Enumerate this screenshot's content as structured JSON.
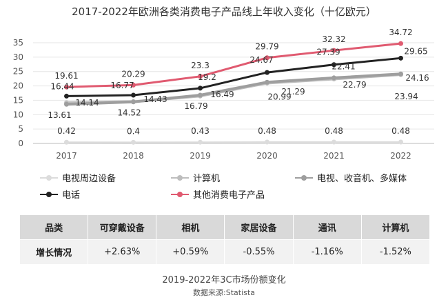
{
  "chart_data": {
    "type": "line",
    "title": "2017-2022年欧洲各类消费电子产品线上年收入变化（十亿欧元）",
    "xlabel": "",
    "ylabel": "",
    "x": [
      "2017",
      "2018",
      "2019",
      "2020",
      "2021",
      "2022"
    ],
    "ylim": [
      0,
      35
    ],
    "yticks": [
      "0",
      "5",
      "10",
      "15",
      "20",
      "25",
      "30",
      "35"
    ],
    "grid": true,
    "legend_position": "bottom",
    "series": [
      {
        "name": "电视周边设备",
        "values": [
          0.42,
          0.4,
          0.43,
          0.48,
          0.48,
          0.48
        ],
        "color": "#dcdcdc"
      },
      {
        "name": "计算机",
        "values": [
          14.14,
          14.52,
          16.49,
          20.99,
          22.41,
          23.94
        ],
        "color": "#bdbdbd"
      },
      {
        "name": "电视、收音机、多媒体",
        "values": [
          13.61,
          14.43,
          16.79,
          21.29,
          22.79,
          24.16
        ],
        "color": "#9e9e9e"
      },
      {
        "name": "电话",
        "values": [
          16.44,
          16.77,
          19.2,
          24.67,
          27.39,
          29.65
        ],
        "color": "#222222"
      },
      {
        "name": "其他消费电子产品",
        "values": [
          19.61,
          20.29,
          23.3,
          29.79,
          32.32,
          34.72
        ],
        "color": "#e05a70"
      }
    ]
  },
  "table": {
    "header": [
      "品类",
      "可穿戴设备",
      "相机",
      "家居设备",
      "通讯",
      "计算机"
    ],
    "row": [
      "增长情况",
      "+2.63%",
      "+0.59%",
      "-0.55%",
      "-1.16%",
      "-1.52%"
    ],
    "caption": "2019-2022年3C市场份额变化",
    "source": "数据来源:Statista"
  }
}
